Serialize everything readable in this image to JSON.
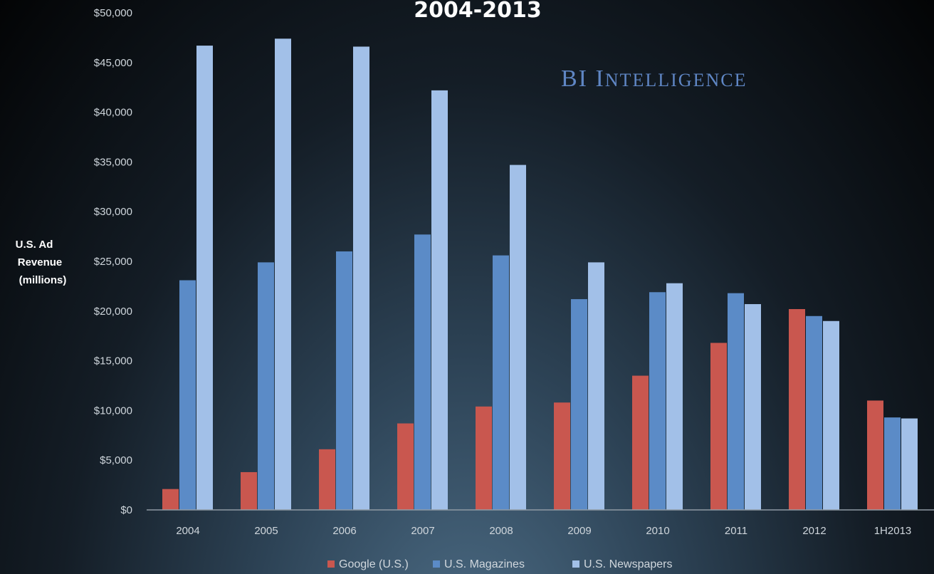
{
  "chart_data": {
    "type": "bar",
    "title": "2004-2013",
    "ylabel": [
      "U.S. Ad",
      "Revenue",
      "(millions)"
    ],
    "xlabel": "",
    "categories": [
      "2004",
      "2005",
      "2006",
      "2007",
      "2008",
      "2009",
      "2010",
      "2011",
      "2012",
      "1H2013"
    ],
    "ylim": [
      0,
      50000
    ],
    "yticks": [
      0,
      5000,
      10000,
      15000,
      20000,
      25000,
      30000,
      35000,
      40000,
      45000,
      50000
    ],
    "ytick_labels": [
      "$0",
      "$5,000",
      "$10,000",
      "$15,000",
      "$20,000",
      "$25,000",
      "$30,000",
      "$35,000",
      "$40,000",
      "$45,000",
      "$50,000"
    ],
    "grid": false,
    "legend_position": "bottom",
    "series": [
      {
        "name": "Google (U.S.)",
        "color": "#c9574f",
        "values": [
          2100,
          3800,
          6100,
          8700,
          10400,
          10800,
          13500,
          16800,
          20200,
          11000
        ]
      },
      {
        "name": "U.S. Magazines",
        "color": "#5b8bc7",
        "values": [
          23100,
          24900,
          26000,
          27700,
          25600,
          21200,
          21900,
          21800,
          19500,
          9300
        ]
      },
      {
        "name": "U.S. Newspapers",
        "color": "#a2c0e8",
        "values": [
          46700,
          47400,
          46600,
          42200,
          34700,
          24900,
          22800,
          20700,
          19000,
          9200
        ]
      }
    ],
    "watermark": {
      "prefix_a": "BI I",
      "prefix_b": "NTELLIGENCE"
    }
  }
}
